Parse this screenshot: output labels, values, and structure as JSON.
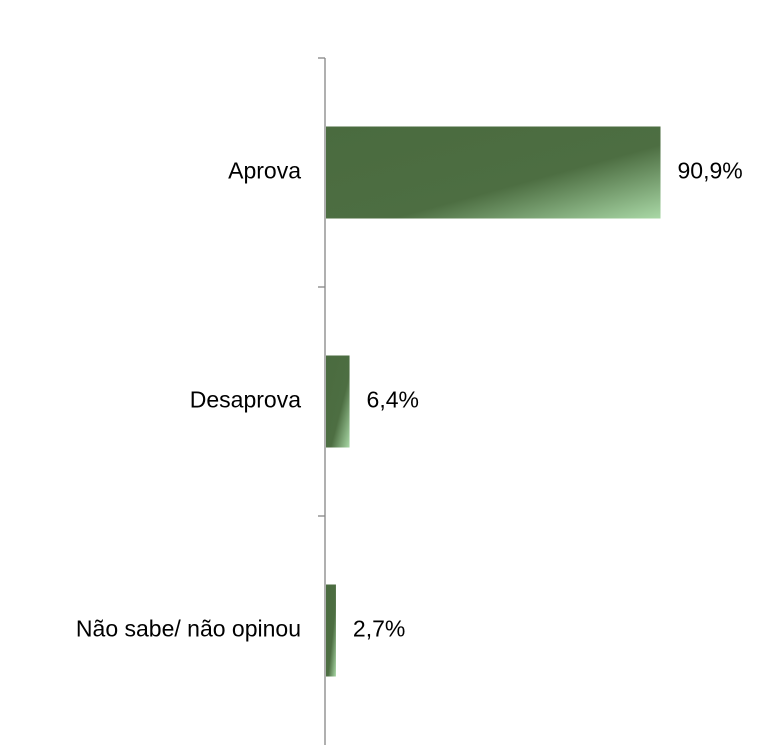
{
  "chart_data": {
    "type": "bar",
    "orientation": "horizontal",
    "categories": [
      "Aprova",
      "Desaprova",
      "Não sabe/ não opinou"
    ],
    "values": [
      90.9,
      6.4,
      2.7
    ],
    "value_labels": [
      "90,9%",
      "6,4%",
      "2,7%"
    ],
    "unit": "%",
    "xlim": [
      0,
      100
    ],
    "grid": false,
    "legend": "none",
    "colors": {
      "bar_dark": "#4a6b3f",
      "bar_mid": "#557a49",
      "bar_light": "#a9d8a6",
      "axis": "#868686"
    }
  }
}
